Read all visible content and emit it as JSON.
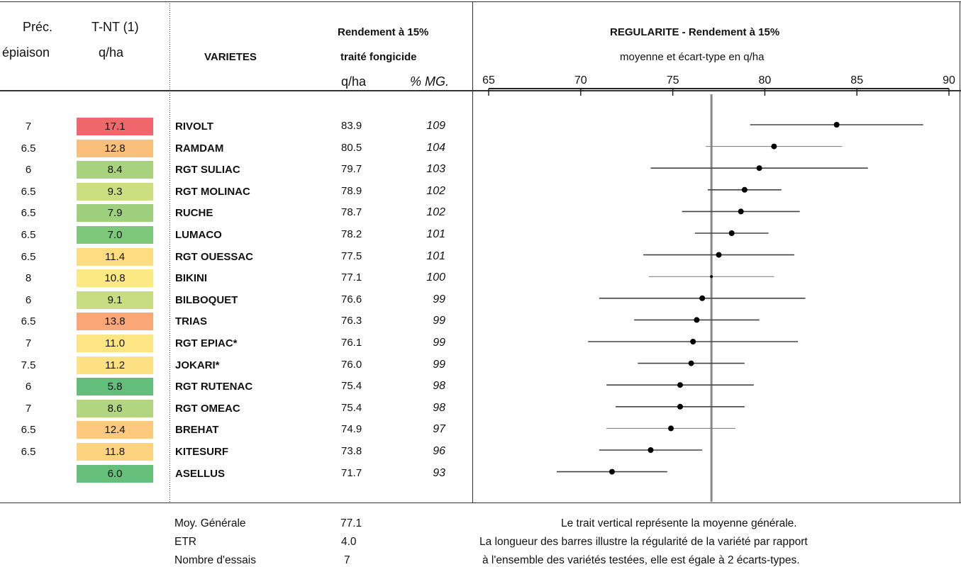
{
  "headers": {
    "prec_line1": "Préc.",
    "prec_line2": "épiaison",
    "tnt_line1": "T-NT (1)",
    "tnt_line2": "q/ha",
    "varietes": "VARIETES",
    "rendement_line1": "Rendement à 15%",
    "rendement_line2": "traité fongicide",
    "unit_qha": "q/ha",
    "unit_mg": "% MG.",
    "regularite_title": "REGULARITE - Rendement à 15%",
    "regularite_subtitle": "moyenne et écart-type en q/ha"
  },
  "rows": [
    {
      "prec": "7",
      "tnt": "17.1",
      "tnt_color": "#f0686b",
      "name": "RIVOLT",
      "qha": "83.9",
      "mg": "109"
    },
    {
      "prec": "6.5",
      "tnt": "12.8",
      "tnt_color": "#fbbf7c",
      "name": "RAMDAM",
      "qha": "80.5",
      "mg": "104"
    },
    {
      "prec": "6",
      "tnt": "8.4",
      "tnt_color": "#a9d27f",
      "name": "RGT SULIAC",
      "qha": "79.7",
      "mg": "103"
    },
    {
      "prec": "6.5",
      "tnt": "9.3",
      "tnt_color": "#cddd82",
      "name": "RGT MOLINAC",
      "qha": "78.9",
      "mg": "102"
    },
    {
      "prec": "6.5",
      "tnt": "7.9",
      "tnt_color": "#9ed07e",
      "name": "RUCHE",
      "qha": "78.7",
      "mg": "102"
    },
    {
      "prec": "6.5",
      "tnt": "7.0",
      "tnt_color": "#7ec87c",
      "name": "LUMACO",
      "qha": "78.2",
      "mg": "101"
    },
    {
      "prec": "6.5",
      "tnt": "11.4",
      "tnt_color": "#fedc81",
      "name": "RGT OUESSAC",
      "qha": "77.5",
      "mg": "101"
    },
    {
      "prec": "8",
      "tnt": "10.8",
      "tnt_color": "#fde983",
      "name": "BIKINI",
      "qha": "77.1",
      "mg": "100"
    },
    {
      "prec": "6",
      "tnt": "9.1",
      "tnt_color": "#c8dc81",
      "name": "BILBOQUET",
      "qha": "76.6",
      "mg": "99"
    },
    {
      "prec": "6.5",
      "tnt": "13.8",
      "tnt_color": "#f9a776",
      "name": "TRIAS",
      "qha": "76.3",
      "mg": "99"
    },
    {
      "prec": "7",
      "tnt": "11.0",
      "tnt_color": "#fde583",
      "name": "RGT EPIAC*",
      "qha": "76.1",
      "mg": "99"
    },
    {
      "prec": "7.5",
      "tnt": "11.2",
      "tnt_color": "#fee182",
      "name": "JOKARI*",
      "qha": "76.0",
      "mg": "99"
    },
    {
      "prec": "6",
      "tnt": "5.8",
      "tnt_color": "#63be7b",
      "name": "RGT RUTENAC",
      "qha": "75.4",
      "mg": "98"
    },
    {
      "prec": "7",
      "tnt": "8.6",
      "tnt_color": "#b1d580",
      "name": "RGT OMEAC",
      "qha": "75.4",
      "mg": "98"
    },
    {
      "prec": "6.5",
      "tnt": "12.4",
      "tnt_color": "#fcc97e",
      "name": "BREHAT",
      "qha": "74.9",
      "mg": "97"
    },
    {
      "prec": "6.5",
      "tnt": "11.8",
      "tnt_color": "#fdd380",
      "name": "KITESURF",
      "qha": "73.8",
      "mg": "96"
    },
    {
      "prec": "",
      "tnt": "6.0",
      "tnt_color": "#66c07b",
      "name": "ASELLUS",
      "qha": "71.7",
      "mg": "93"
    }
  ],
  "footer": {
    "moy_label": "Moy. Générale",
    "moy_value": "77.1",
    "etr_label": "ETR",
    "etr_value": "4.0",
    "essais_label": "Nombre d'essais",
    "essais_value": "7",
    "note_line1": "Le trait vertical représente la moyenne générale.",
    "note_line2": "La longueur des barres illustre la régularité de la variété par rapport",
    "note_line3": "à l'ensemble des variétés testées, elle est égale à 2 écarts-types."
  },
  "chart_data": {
    "type": "scatter",
    "title": "REGULARITE - Rendement à 15%",
    "subtitle": "moyenne et écart-type en q/ha",
    "xlim": [
      65,
      90
    ],
    "xticks": [
      65,
      70,
      75,
      80,
      85,
      90
    ],
    "mean_line": 77.1,
    "categories": [
      "RIVOLT",
      "RAMDAM",
      "RGT SULIAC",
      "RGT MOLINAC",
      "RUCHE",
      "LUMACO",
      "RGT OUESSAC",
      "BIKINI",
      "BILBOQUET",
      "TRIAS",
      "RGT EPIAC*",
      "JOKARI*",
      "RGT RUTENAC",
      "RGT OMEAC",
      "BREHAT",
      "KITESURF",
      "ASELLUS"
    ],
    "means": [
      83.9,
      80.5,
      79.7,
      78.9,
      78.7,
      78.2,
      77.5,
      77.1,
      76.6,
      76.3,
      76.1,
      76.0,
      75.4,
      75.4,
      74.9,
      73.8,
      71.7
    ],
    "low": [
      79.2,
      76.8,
      73.8,
      76.9,
      75.5,
      76.2,
      73.4,
      73.7,
      71.0,
      72.9,
      70.4,
      73.1,
      71.4,
      71.9,
      71.4,
      71.0,
      68.7
    ],
    "high": [
      88.6,
      84.2,
      85.6,
      80.9,
      81.9,
      80.2,
      81.6,
      80.5,
      82.2,
      79.7,
      81.8,
      78.9,
      79.4,
      78.9,
      78.4,
      76.6,
      74.7
    ],
    "thin_bar": [
      false,
      true,
      false,
      false,
      false,
      false,
      false,
      true,
      false,
      false,
      false,
      false,
      false,
      false,
      true,
      false,
      false
    ],
    "small_dot": [
      false,
      false,
      false,
      false,
      false,
      false,
      false,
      true,
      false,
      false,
      false,
      false,
      false,
      false,
      false,
      false,
      false
    ]
  }
}
